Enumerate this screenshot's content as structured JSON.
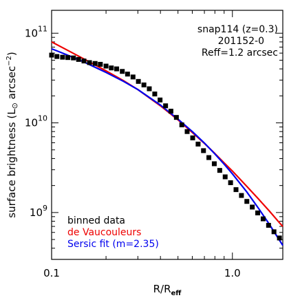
{
  "chart_data": {
    "type": "scatter",
    "xscale": "log",
    "yscale": "log",
    "xlim": [
      0.1,
      1.9
    ],
    "ylim": [
      300000000,
      180000000000
    ],
    "xlabel_main": "R/R",
    "xlabel_sub": "eff",
    "ylabel_main": "surface brightness (L",
    "ylabel_sun": "⊙",
    "ylabel_unit": " arcsec",
    "ylabel_exp": "−2",
    "ylabel_end": ")",
    "x_ticks": [
      {
        "value": 0.1,
        "label": "0.1"
      },
      {
        "value": 1.0,
        "label": "1.0"
      }
    ],
    "y_ticks": [
      {
        "value": 1000000000,
        "base": "10",
        "exp": "9"
      },
      {
        "value": 10000000000,
        "base": "10",
        "exp": "10"
      },
      {
        "value": 100000000000,
        "base": "10",
        "exp": "11"
      }
    ],
    "annotations": [
      "snap114 (z=0.3)",
      "201152-0",
      "Reff=1.2 arcsec"
    ],
    "legend": [
      {
        "text": "binned data",
        "color": "#000000"
      },
      {
        "text": "de Vaucouleurs",
        "color": "#ee0000"
      },
      {
        "text": "Sersic fit (m=2.35)",
        "color": "#0000ee"
      }
    ],
    "series": [
      {
        "name": "binned data",
        "kind": "markers",
        "color": "#000000",
        "x": [
          0.1,
          0.107,
          0.115,
          0.123,
          0.132,
          0.141,
          0.151,
          0.162,
          0.174,
          0.186,
          0.2,
          0.214,
          0.229,
          0.246,
          0.263,
          0.282,
          0.302,
          0.324,
          0.347,
          0.372,
          0.398,
          0.427,
          0.457,
          0.49,
          0.525,
          0.562,
          0.603,
          0.646,
          0.692,
          0.741,
          0.794,
          0.851,
          0.912,
          0.977,
          1.047,
          1.122,
          1.202,
          1.288,
          1.38,
          1.479,
          1.585,
          1.698,
          1.82
        ],
        "y": [
          57000000000,
          55000000000,
          54000000000,
          53500000000,
          53000000000,
          51000000000,
          49000000000,
          47000000000,
          46000000000,
          45000000000,
          43000000000,
          41000000000,
          40000000000,
          37500000000,
          35000000000,
          32500000000,
          29000000000,
          26500000000,
          24000000000,
          21000000000,
          18000000000,
          15500000000,
          13500000000,
          11500000000,
          9500000000,
          8000000000,
          6800000000,
          5800000000,
          4900000000,
          4100000000,
          3500000000,
          2950000000,
          2500000000,
          2150000000,
          1800000000,
          1550000000,
          1330000000,
          1150000000,
          990000000,
          850000000,
          720000000,
          610000000,
          520000000
        ]
      },
      {
        "name": "de Vaucouleurs",
        "kind": "line",
        "color": "#ee0000",
        "x": [
          0.1,
          0.12,
          0.15,
          0.2,
          0.25,
          0.3,
          0.4,
          0.5,
          0.6,
          0.7,
          0.8,
          0.9,
          1.0,
          1.2,
          1.4,
          1.6,
          1.8,
          1.9
        ],
        "y": [
          80000000000,
          66000000000,
          52000000000,
          38000000000,
          29500000000,
          23500000000,
          15500000000,
          10800000000,
          7800000000,
          5900000000,
          4550000000,
          3580000000,
          2900000000,
          1960000000,
          1400000000,
          1040000000,
          790000000,
          700000000
        ]
      },
      {
        "name": "Sersic fit (m=2.35)",
        "kind": "line",
        "color": "#0000ee",
        "x": [
          0.1,
          0.12,
          0.15,
          0.2,
          0.25,
          0.3,
          0.4,
          0.5,
          0.6,
          0.7,
          0.8,
          0.9,
          1.0,
          1.2,
          1.4,
          1.6,
          1.8,
          1.9
        ],
        "y": [
          67000000000,
          58000000000,
          48000000000,
          36500000000,
          29000000000,
          23500000000,
          15800000000,
          11000000000,
          8000000000,
          5950000000,
          4500000000,
          3470000000,
          2700000000,
          1700000000,
          1100000000,
          740000000,
          510000000,
          430000000
        ]
      }
    ]
  }
}
